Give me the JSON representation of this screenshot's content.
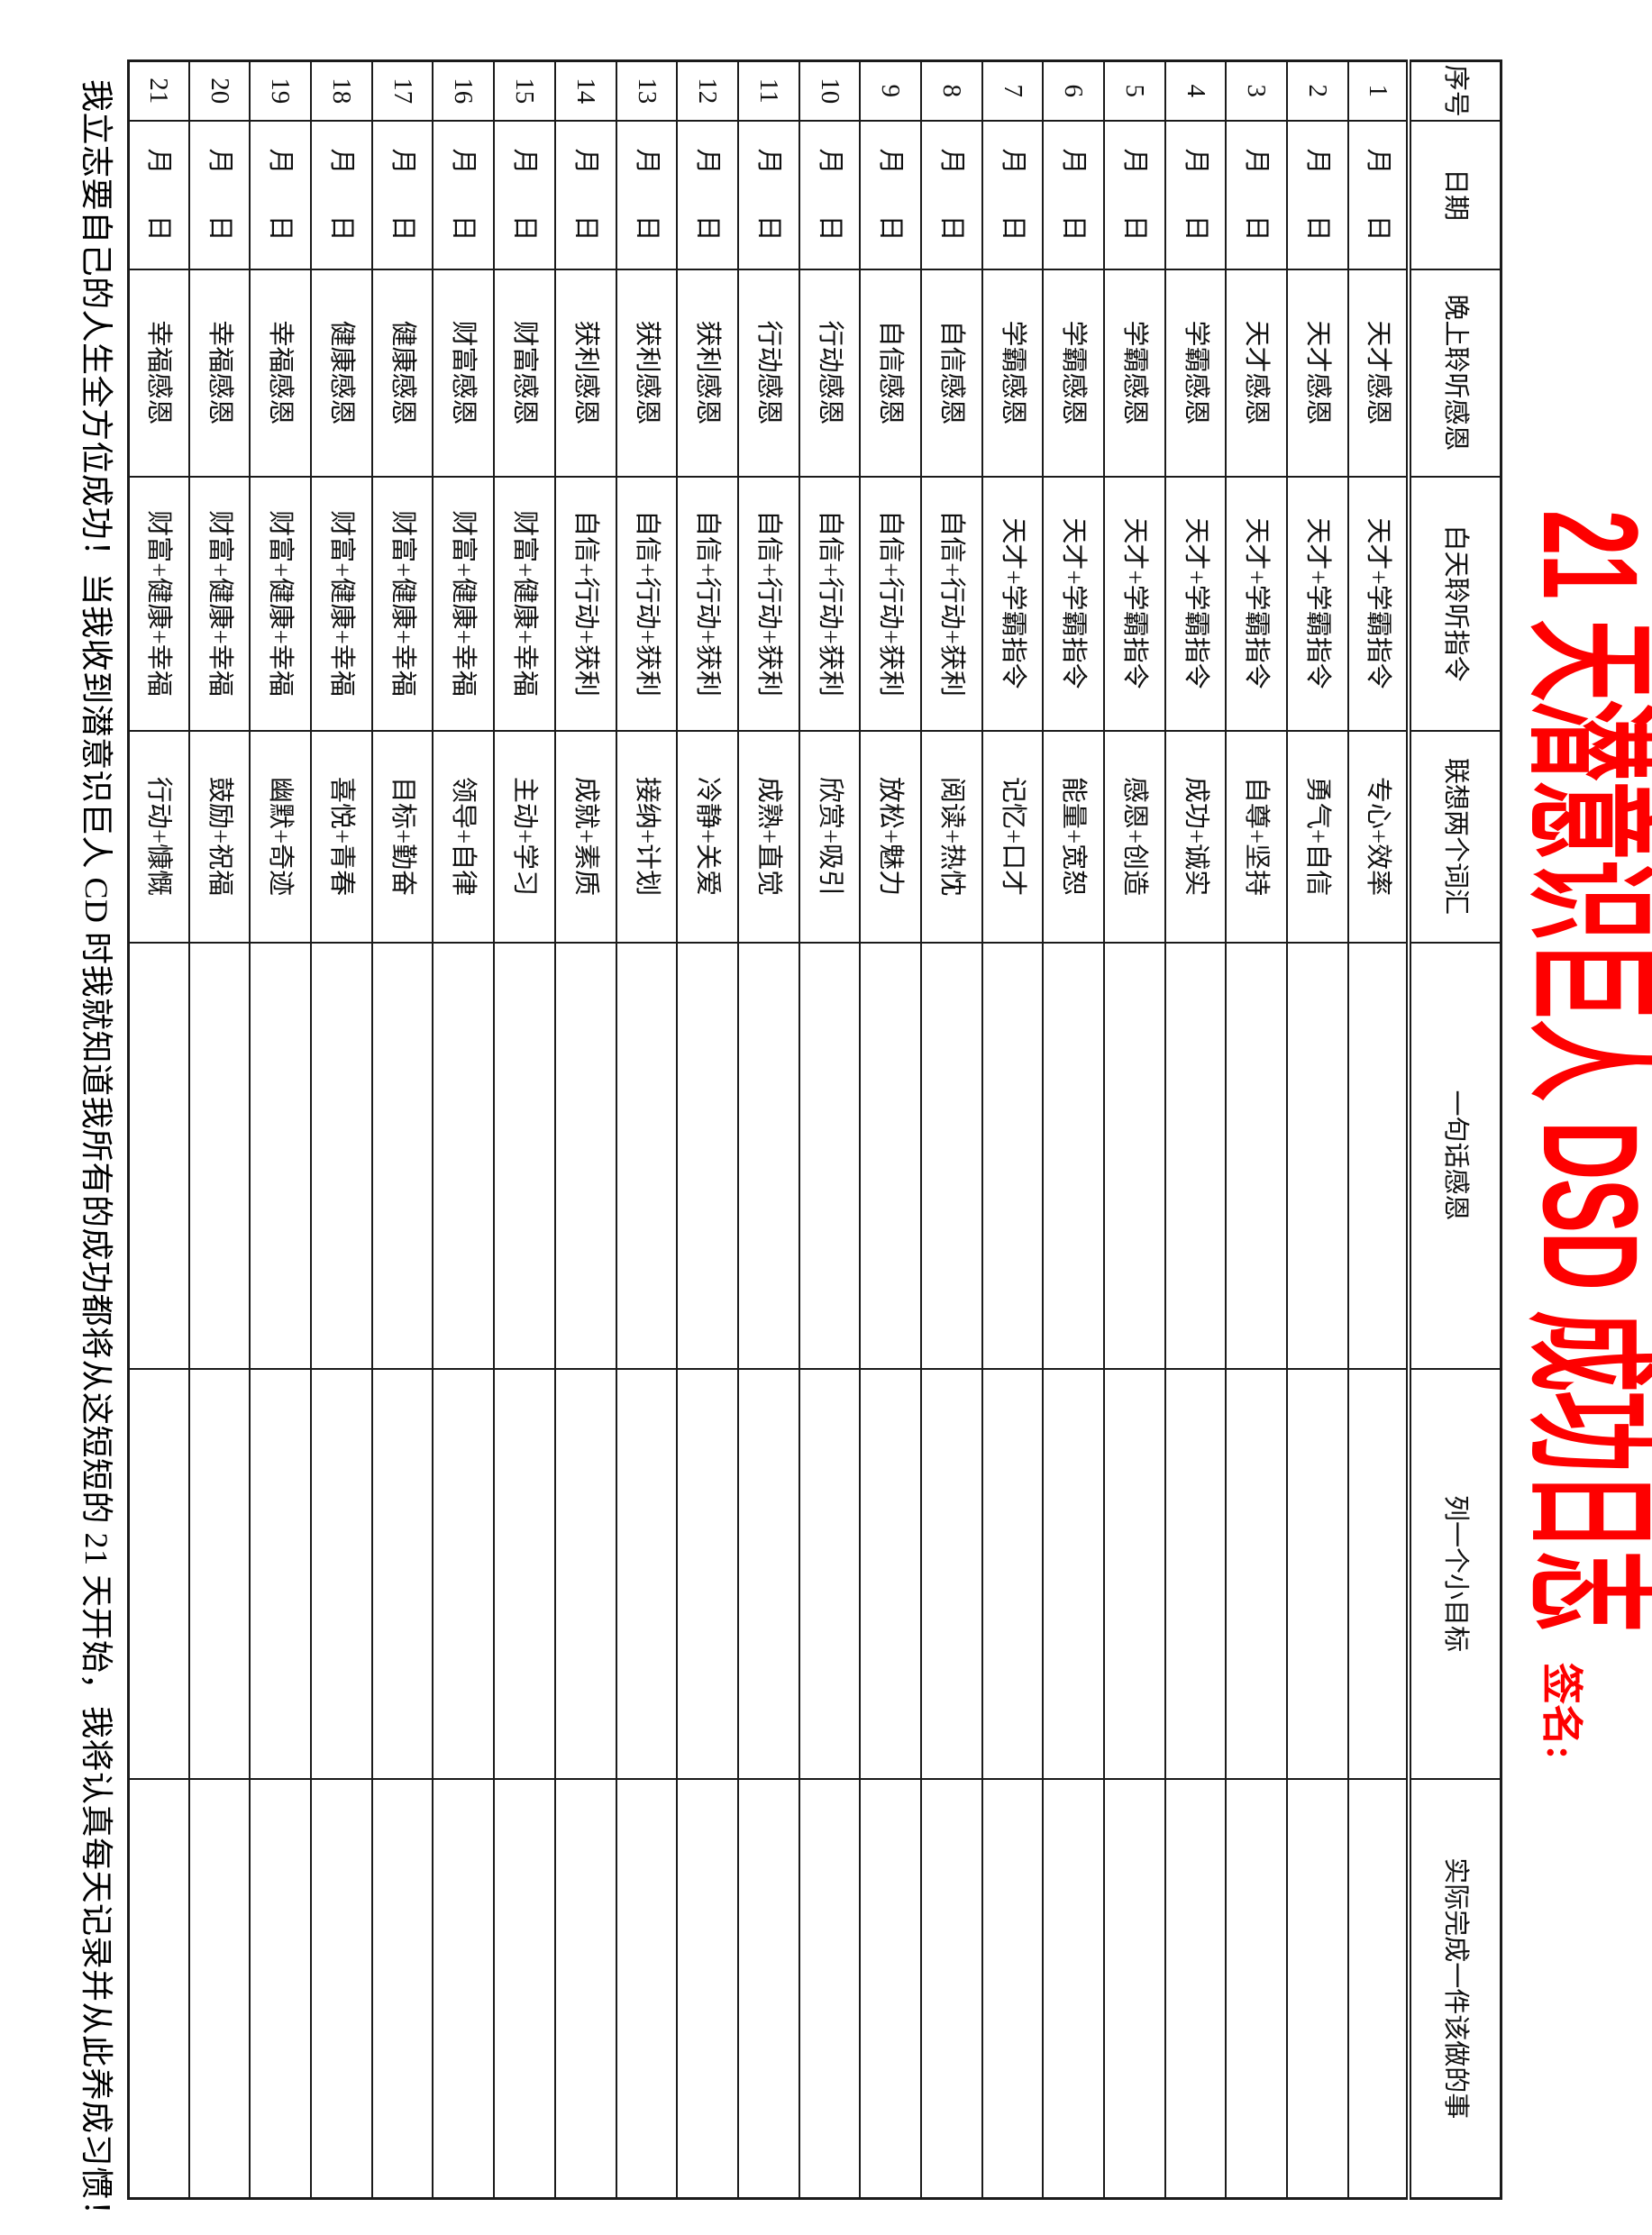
{
  "title": "21 天潜意识巨人 DSD 成功日志",
  "signature_label": "签名:",
  "motto": "我立志要自己的人生全方位成功！当我收到潜意识巨人 CD 时我就知道我所有的成功都将从这短短的 21 天开始，我将认真每天记录并从此养成习惯！",
  "colors": {
    "accent_red": "#fe0000",
    "grid_black": "#1b1b1b"
  },
  "table": {
    "headers": [
      "序号",
      "日期",
      "晚上聆听感恩",
      "白天聆听指令",
      "联想两个词汇",
      "一句话感恩",
      "列一个小目标",
      "实际完成一件该做的事"
    ],
    "date_month": "月",
    "date_day": "日",
    "rows": [
      {
        "seq": "1",
        "evening": "天才感恩",
        "daytime": "天才+学霸指令",
        "words": "专心+效率",
        "gratitude": "",
        "goal": "",
        "done": ""
      },
      {
        "seq": "2",
        "evening": "天才感恩",
        "daytime": "天才+学霸指令",
        "words": "勇气+自信",
        "gratitude": "",
        "goal": "",
        "done": ""
      },
      {
        "seq": "3",
        "evening": "天才感恩",
        "daytime": "天才+学霸指令",
        "words": "自尊+坚持",
        "gratitude": "",
        "goal": "",
        "done": ""
      },
      {
        "seq": "4",
        "evening": "学霸感恩",
        "daytime": "天才+学霸指令",
        "words": "成功+诚实",
        "gratitude": "",
        "goal": "",
        "done": ""
      },
      {
        "seq": "5",
        "evening": "学霸感恩",
        "daytime": "天才+学霸指令",
        "words": "感恩+创造",
        "gratitude": "",
        "goal": "",
        "done": ""
      },
      {
        "seq": "6",
        "evening": "学霸感恩",
        "daytime": "天才+学霸指令",
        "words": "能量+宽恕",
        "gratitude": "",
        "goal": "",
        "done": ""
      },
      {
        "seq": "7",
        "evening": "学霸感恩",
        "daytime": "天才+学霸指令",
        "words": "记忆+口才",
        "gratitude": "",
        "goal": "",
        "done": ""
      },
      {
        "seq": "8",
        "evening": "自信感恩",
        "daytime": "自信+行动+获利",
        "words": "阅读+热忱",
        "gratitude": "",
        "goal": "",
        "done": ""
      },
      {
        "seq": "9",
        "evening": "自信感恩",
        "daytime": "自信+行动+获利",
        "words": "放松+魅力",
        "gratitude": "",
        "goal": "",
        "done": ""
      },
      {
        "seq": "10",
        "evening": "行动感恩",
        "daytime": "自信+行动+获利",
        "words": "欣赏+吸引",
        "gratitude": "",
        "goal": "",
        "done": ""
      },
      {
        "seq": "11",
        "evening": "行动感恩",
        "daytime": "自信+行动+获利",
        "words": "成熟+直觉",
        "gratitude": "",
        "goal": "",
        "done": ""
      },
      {
        "seq": "12",
        "evening": "获利感恩",
        "daytime": "自信+行动+获利",
        "words": "冷静+关爱",
        "gratitude": "",
        "goal": "",
        "done": ""
      },
      {
        "seq": "13",
        "evening": "获利感恩",
        "daytime": "自信+行动+获利",
        "words": "接纳+计划",
        "gratitude": "",
        "goal": "",
        "done": ""
      },
      {
        "seq": "14",
        "evening": "获利感恩",
        "daytime": "自信+行动+获利",
        "words": "成就+素质",
        "gratitude": "",
        "goal": "",
        "done": ""
      },
      {
        "seq": "15",
        "evening": "财富感恩",
        "daytime": "财富+健康+幸福",
        "words": "主动+学习",
        "gratitude": "",
        "goal": "",
        "done": ""
      },
      {
        "seq": "16",
        "evening": "财富感恩",
        "daytime": "财富+健康+幸福",
        "words": "领导+自律",
        "gratitude": "",
        "goal": "",
        "done": ""
      },
      {
        "seq": "17",
        "evening": "健康感恩",
        "daytime": "财富+健康+幸福",
        "words": "目标+勤奋",
        "gratitude": "",
        "goal": "",
        "done": ""
      },
      {
        "seq": "18",
        "evening": "健康感恩",
        "daytime": "财富+健康+幸福",
        "words": "喜悦+青春",
        "gratitude": "",
        "goal": "",
        "done": ""
      },
      {
        "seq": "19",
        "evening": "幸福感恩",
        "daytime": "财富+健康+幸福",
        "words": "幽默+奇迹",
        "gratitude": "",
        "goal": "",
        "done": ""
      },
      {
        "seq": "20",
        "evening": "幸福感恩",
        "daytime": "财富+健康+幸福",
        "words": "鼓励+祝福",
        "gratitude": "",
        "goal": "",
        "done": ""
      },
      {
        "seq": "21",
        "evening": "幸福感恩",
        "daytime": "财富+健康+幸福",
        "words": "行动+慷慨",
        "gratitude": "",
        "goal": "",
        "done": ""
      }
    ]
  }
}
